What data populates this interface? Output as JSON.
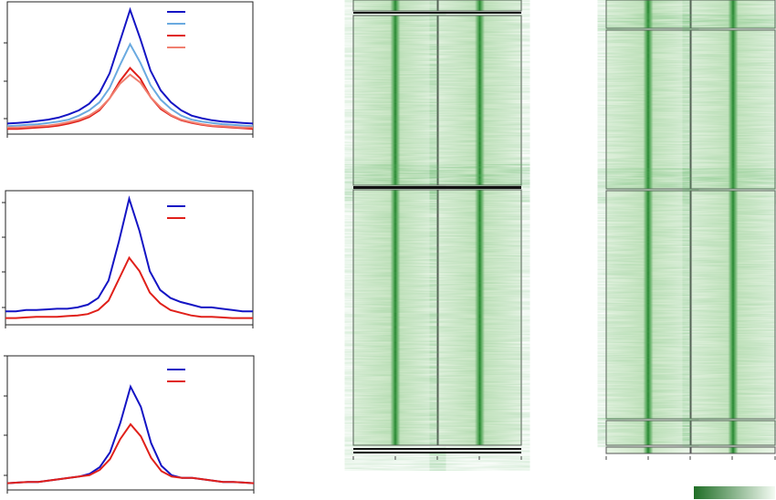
{
  "chart_data": [
    {
      "type": "line",
      "x": [
        0,
        1,
        2,
        3,
        4,
        5,
        6,
        7,
        8,
        9,
        10,
        11,
        12,
        13,
        14,
        15,
        16,
        17,
        18,
        19,
        20,
        21,
        22,
        23,
        24
      ],
      "xlim": [
        0,
        24
      ],
      "ylim": [
        0,
        100
      ],
      "series": [
        {
          "color": "#1414c4",
          "values": [
            8,
            8.5,
            9,
            10,
            11,
            12.5,
            15,
            18,
            23,
            31,
            46,
            70,
            94,
            72,
            48,
            33,
            24,
            18,
            14,
            12,
            10.5,
            9.5,
            9,
            8.5,
            8
          ]
        },
        {
          "color": "#6aaae0",
          "values": [
            6,
            6.5,
            7,
            7.5,
            8.5,
            9.5,
            11,
            14,
            18,
            24,
            35,
            52,
            68,
            54,
            37,
            26,
            19,
            14,
            11,
            9.5,
            8.5,
            7.5,
            7,
            6.5,
            6
          ]
        },
        {
          "color": "#e0201a",
          "values": [
            4,
            4,
            4.5,
            5,
            5.5,
            6.5,
            8,
            10,
            13,
            18,
            27,
            40,
            50,
            42,
            28,
            19,
            14,
            10.5,
            8.5,
            7,
            6,
            5.5,
            5,
            4.5,
            4
          ]
        },
        {
          "color": "#f08070",
          "values": [
            5,
            5,
            5.5,
            6,
            6.5,
            7.5,
            9,
            11,
            14,
            19,
            27,
            38,
            45,
            39,
            28,
            20,
            14.5,
            11,
            9,
            7.5,
            6.5,
            6,
            5.5,
            5,
            5
          ]
        }
      ]
    },
    {
      "type": "line",
      "x": [
        0,
        1,
        2,
        3,
        4,
        5,
        6,
        7,
        8,
        9,
        10,
        11,
        12,
        13,
        14,
        15,
        16,
        17,
        18,
        19,
        20,
        21,
        22,
        23,
        24
      ],
      "xlim": [
        0,
        24
      ],
      "ylim": [
        0,
        100
      ],
      "series": [
        {
          "color": "#1414c4",
          "values": [
            10,
            10,
            11,
            11,
            11.5,
            12,
            12,
            13,
            15,
            20,
            33,
            62,
            94,
            70,
            40,
            26,
            20,
            17,
            15,
            13,
            13,
            12,
            11,
            10,
            10
          ]
        },
        {
          "color": "#e0201a",
          "values": [
            5,
            5,
            5.5,
            6,
            6,
            6,
            6.5,
            7,
            8,
            11,
            18,
            34,
            50,
            40,
            24,
            16,
            11,
            9,
            7,
            6,
            6,
            5.5,
            5,
            5,
            5
          ]
        }
      ]
    },
    {
      "type": "line",
      "x": [
        0,
        1,
        2,
        3,
        4,
        5,
        6,
        7,
        8,
        9,
        10,
        11,
        12,
        13,
        14,
        15,
        16,
        17,
        18,
        19,
        20,
        21,
        22,
        23,
        24
      ],
      "xlim": [
        0,
        24
      ],
      "ylim": [
        0,
        100
      ],
      "series": [
        {
          "color": "#1414c4",
          "values": [
            5,
            5.5,
            6,
            6,
            7,
            8,
            9,
            10,
            12,
            17,
            28,
            50,
            77,
            62,
            35,
            18,
            11,
            9,
            9,
            8,
            7,
            6,
            6,
            5.5,
            5
          ]
        },
        {
          "color": "#e0201a",
          "values": [
            5,
            5.5,
            6,
            6,
            7,
            8,
            9,
            10,
            11,
            15,
            23,
            38,
            49,
            40,
            24,
            14,
            10,
            9,
            9,
            8,
            7,
            6,
            6,
            5.5,
            5
          ]
        }
      ]
    }
  ]
}
